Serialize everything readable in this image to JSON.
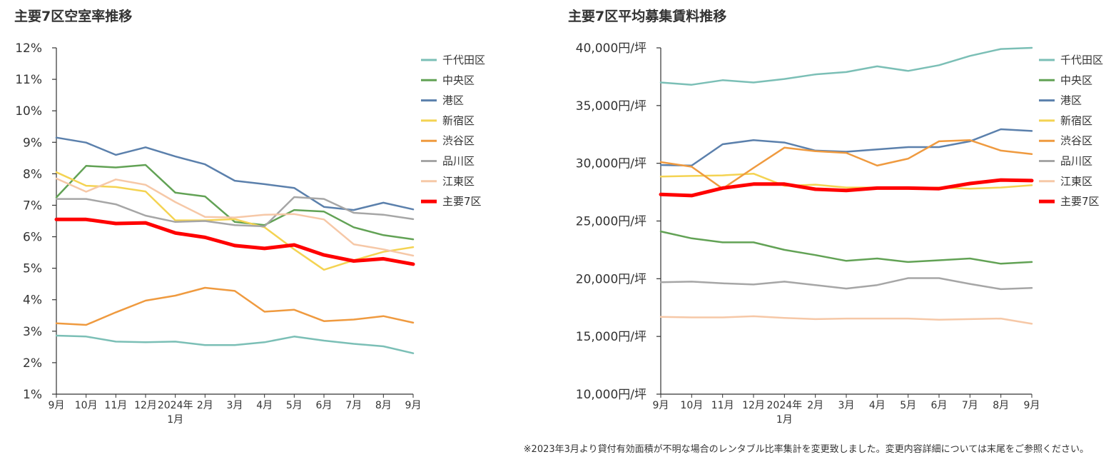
{
  "footnote": "※2023年3月より貸付有効面積が不明な場合のレンタブル比率集計を変更致しました。変更内容詳細については末尾をご参照ください。",
  "chart_data": [
    {
      "type": "line",
      "title": "主要7区空室率推移",
      "categories": [
        "9月",
        "10月",
        "11月",
        "12月",
        "2024年|1月",
        "2月",
        "3月",
        "4月",
        "5月",
        "6月",
        "7月",
        "8月",
        "9月"
      ],
      "ylim": [
        1,
        12
      ],
      "yticks": [
        1,
        2,
        3,
        4,
        5,
        6,
        7,
        8,
        9,
        10,
        11,
        12
      ],
      "ytick_labels": [
        "1%",
        "2%",
        "3%",
        "4%",
        "5%",
        "6%",
        "7%",
        "8%",
        "9%",
        "10%",
        "11%",
        "12%"
      ],
      "legend_position": "right",
      "grid": false,
      "series": [
        {
          "name": "千代田区",
          "color": "#7bbfb6",
          "width": 2.5,
          "values": [
            2.86,
            2.83,
            2.67,
            2.65,
            2.67,
            2.56,
            2.56,
            2.65,
            2.83,
            2.7,
            2.6,
            2.52,
            2.3
          ]
        },
        {
          "name": "中央区",
          "color": "#62a255",
          "width": 2.5,
          "values": [
            7.25,
            8.25,
            8.2,
            8.28,
            7.4,
            7.28,
            6.47,
            6.37,
            6.85,
            6.8,
            6.3,
            6.05,
            5.92
          ]
        },
        {
          "name": "港区",
          "color": "#5b80ac",
          "width": 2.5,
          "values": [
            9.15,
            8.99,
            8.6,
            8.84,
            8.55,
            8.3,
            7.78,
            7.67,
            7.55,
            6.95,
            6.85,
            7.08,
            6.87
          ]
        },
        {
          "name": "新宿区",
          "color": "#f4d352",
          "width": 2.5,
          "values": [
            8.05,
            7.62,
            7.58,
            7.44,
            6.52,
            6.52,
            6.56,
            6.3,
            5.6,
            4.95,
            5.25,
            5.52,
            5.67
          ]
        },
        {
          "name": "渋谷区",
          "color": "#ef9a3f",
          "width": 2.5,
          "values": [
            3.25,
            3.2,
            3.6,
            3.97,
            4.13,
            4.38,
            4.28,
            3.62,
            3.68,
            3.32,
            3.37,
            3.48,
            3.27
          ]
        },
        {
          "name": "品川区",
          "color": "#a6a6a6",
          "width": 2.5,
          "values": [
            7.2,
            7.2,
            7.03,
            6.67,
            6.47,
            6.5,
            6.37,
            6.33,
            7.26,
            7.2,
            6.76,
            6.7,
            6.56
          ]
        },
        {
          "name": "江東区",
          "color": "#f6c8a7",
          "width": 2.5,
          "values": [
            7.85,
            7.43,
            7.82,
            7.65,
            7.1,
            6.63,
            6.61,
            6.7,
            6.72,
            6.55,
            5.76,
            5.6,
            5.4
          ]
        },
        {
          "name": "主要7区",
          "color": "#ff0000",
          "width": 5,
          "values": [
            6.55,
            6.55,
            6.42,
            6.44,
            6.12,
            5.98,
            5.72,
            5.63,
            5.74,
            5.42,
            5.23,
            5.3,
            5.13
          ]
        }
      ]
    },
    {
      "type": "line",
      "title": "主要7区平均募集賃料推移",
      "categories": [
        "9月",
        "10月",
        "11月",
        "12月",
        "2024年|1月",
        "2月",
        "3月",
        "4月",
        "5月",
        "6月",
        "7月",
        "8月",
        "9月"
      ],
      "ylim": [
        10000,
        40000
      ],
      "yticks": [
        10000,
        15000,
        20000,
        25000,
        30000,
        35000,
        40000
      ],
      "ytick_labels": [
        "10,000円/坪",
        "15,000円/坪",
        "20,000円/坪",
        "25,000円/坪",
        "30,000円/坪",
        "35,000円/坪",
        "40,000円/坪"
      ],
      "legend_position": "right",
      "grid": false,
      "series": [
        {
          "name": "千代田区",
          "color": "#7bbfb6",
          "width": 2.5,
          "values": [
            37000,
            36800,
            37200,
            37000,
            37300,
            37700,
            37900,
            38400,
            38000,
            38500,
            39300,
            39900,
            40000
          ]
        },
        {
          "name": "中央区",
          "color": "#62a255",
          "width": 2.5,
          "values": [
            24100,
            23500,
            23150,
            23150,
            22500,
            22050,
            21550,
            21750,
            21450,
            21600,
            21750,
            21300,
            21450
          ]
        },
        {
          "name": "港区",
          "color": "#5b80ac",
          "width": 2.5,
          "values": [
            29850,
            29800,
            31650,
            32000,
            31800,
            31100,
            31000,
            31200,
            31400,
            31400,
            31900,
            32950,
            32800
          ]
        },
        {
          "name": "新宿区",
          "color": "#f4d352",
          "width": 2.5,
          "values": [
            28850,
            28900,
            28950,
            29100,
            28050,
            28150,
            27900,
            27900,
            27850,
            27900,
            27800,
            27900,
            28100
          ]
        },
        {
          "name": "渋谷区",
          "color": "#ef9a3f",
          "width": 2.5,
          "values": [
            30100,
            29700,
            27800,
            29600,
            31350,
            31050,
            30900,
            29800,
            30400,
            31900,
            32000,
            31100,
            30800
          ]
        },
        {
          "name": "品川区",
          "color": "#a6a6a6",
          "width": 2.5,
          "values": [
            19700,
            19750,
            19600,
            19500,
            19750,
            19450,
            19150,
            19450,
            20050,
            20050,
            19550,
            19100,
            19200
          ]
        },
        {
          "name": "江東区",
          "color": "#f6c8a7",
          "width": 2.5,
          "values": [
            16700,
            16650,
            16650,
            16750,
            16600,
            16500,
            16550,
            16550,
            16550,
            16450,
            16500,
            16550,
            16100
          ]
        },
        {
          "name": "主要7区",
          "color": "#ff0000",
          "width": 5,
          "values": [
            27300,
            27200,
            27850,
            28200,
            28200,
            27750,
            27650,
            27850,
            27850,
            27800,
            28250,
            28550,
            28500
          ]
        }
      ]
    }
  ]
}
